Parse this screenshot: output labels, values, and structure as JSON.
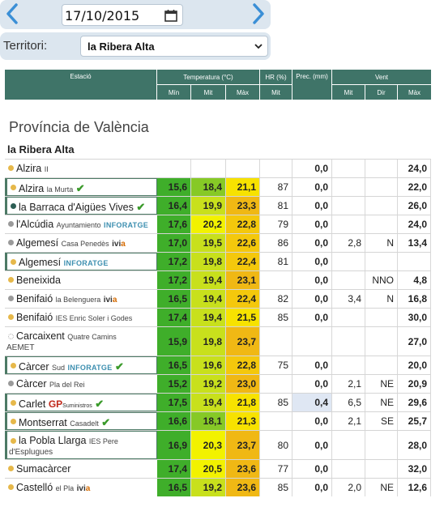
{
  "date_picker": {
    "value": "17/10/2015"
  },
  "territory": {
    "label": "Territori:",
    "value": "la Ribera Alta"
  },
  "table_header": {
    "estacio": "Estació",
    "temperatura": "Temperatura (°C)",
    "hr": "HR (%)",
    "prec": "Prec. (mm)",
    "vent": "Vent",
    "min": "Mín",
    "mit": "Mit",
    "max": "Màx",
    "hr_mit": "Mit",
    "vent_mit": "Mit",
    "vent_dir": "Dir",
    "vent_max": "Màx"
  },
  "province": "Província de València",
  "region": "la Ribera Alta",
  "colors": {
    "header": "#3f7468",
    "dot_yellow": "#e6b84a",
    "dot_gray": "#9a9a9a",
    "dot_teal": "#2d5e54"
  },
  "stations": [
    {
      "name": "Alzira",
      "sub": "II",
      "min": "",
      "mit": "",
      "max": "",
      "hr": "",
      "prec": "0,0",
      "wmit": "",
      "wdir": "",
      "wmax": "24,0"
    },
    {
      "name": "Alzira",
      "sub": "la Murta",
      "check": true,
      "min": "15,6",
      "mit": "18,4",
      "max": "21,1",
      "hr": "87",
      "prec": "0,0",
      "wmit": "",
      "wdir": "",
      "wmax": "22,0"
    },
    {
      "name": "la Barraca d'Aigües Vives",
      "sub": "",
      "check": true,
      "min": "16,4",
      "mit": "19,9",
      "max": "23,3",
      "hr": "81",
      "prec": "0,0",
      "wmit": "",
      "wdir": "",
      "wmax": "26,0"
    },
    {
      "name": "l'Alcúdia",
      "sub": "Ayuntamiento",
      "brand": "INFORATGE",
      "min": "17,6",
      "mit": "20,2",
      "max": "22,8",
      "hr": "79",
      "prec": "0,0",
      "wmit": "",
      "wdir": "",
      "wmax": "24,0"
    },
    {
      "name": "Algemesí",
      "sub": "Casa Penedès",
      "ivia": "ivia",
      "min": "17,0",
      "mit": "19,5",
      "max": "22,6",
      "hr": "86",
      "prec": "0,0",
      "wmit": "2,8",
      "wdir": "N",
      "wmax": "13,4"
    },
    {
      "name": "Algemesí",
      "sub": "",
      "brand": "INFORATGE",
      "min": "17,2",
      "mit": "19,8",
      "max": "22,4",
      "hr": "81",
      "prec": "0,0",
      "wmit": "",
      "wdir": "",
      "wmax": ""
    },
    {
      "name": "Beneixida",
      "sub": "",
      "min": "17,2",
      "mit": "19,4",
      "max": "23,1",
      "hr": "",
      "prec": "0,0",
      "wmit": "",
      "wdir": "NNO",
      "wmax": "4,8"
    },
    {
      "name": "Benifaió",
      "sub": "la Belenguera",
      "ivia": "ivia",
      "min": "16,5",
      "mit": "19,4",
      "max": "22,4",
      "hr": "82",
      "prec": "0,0",
      "wmit": "3,4",
      "wdir": "N",
      "wmax": "16,8"
    },
    {
      "name": "Benifaió",
      "sub": "IES Enric Soler i Godes",
      "min": "17,4",
      "mit": "19,4",
      "max": "21,5",
      "hr": "85",
      "prec": "0,0",
      "wmit": "",
      "wdir": "",
      "wmax": "30,0"
    },
    {
      "name": "Carcaixent",
      "sub": "Quatre Camins",
      "line2": "AEMET",
      "min": "15,9",
      "mit": "19,8",
      "max": "23,7",
      "hr": "",
      "prec": "",
      "wmit": "",
      "wdir": "",
      "wmax": "27,0"
    },
    {
      "name": "Càrcer",
      "sub": "Sud",
      "brand": "INFORATGE",
      "check": true,
      "min": "16,5",
      "mit": "19,6",
      "max": "22,8",
      "hr": "75",
      "prec": "0,0",
      "wmit": "",
      "wdir": "",
      "wmax": "20,0"
    },
    {
      "name": "Càrcer",
      "sub": "Pla del Rei",
      "min": "15,2",
      "mit": "19,2",
      "max": "23,0",
      "hr": "",
      "prec": "0,0",
      "wmit": "2,1",
      "wdir": "NE",
      "wmax": "20,9"
    },
    {
      "name": "Carlet",
      "gp": "GP",
      "gps": "Suministros",
      "check": true,
      "min": "17,5",
      "mit": "19,4",
      "max": "21,8",
      "hr": "85",
      "prec": "0,4",
      "wmit": "6,5",
      "wdir": "NE",
      "wmax": "29,6"
    },
    {
      "name": "Montserrat",
      "sub": "Casadelt",
      "check": true,
      "min": "16,6",
      "mit": "18,1",
      "max": "21,3",
      "hr": "",
      "prec": "0,0",
      "wmit": "2,1",
      "wdir": "SE",
      "wmax": "25,7"
    },
    {
      "name": "la Pobla Llarga",
      "sub": "IES Pere",
      "line2": "d'Esplugues",
      "min": "16,9",
      "mit": "20,3",
      "max": "23,7",
      "hr": "80",
      "prec": "0,0",
      "wmit": "",
      "wdir": "",
      "wmax": "28,0"
    },
    {
      "name": "Sumacàrcer",
      "sub": "",
      "min": "17,4",
      "mit": "20,5",
      "max": "23,6",
      "hr": "77",
      "prec": "0,0",
      "wmit": "",
      "wdir": "",
      "wmax": "32,0"
    },
    {
      "name": "Castelló",
      "sub": "el Pla",
      "ivia": "ivia",
      "min": "16,5",
      "mit": "19,2",
      "max": "23,6",
      "hr": "85",
      "prec": "0,0",
      "wmit": "2,0",
      "wdir": "NE",
      "wmax": "12,6"
    }
  ]
}
